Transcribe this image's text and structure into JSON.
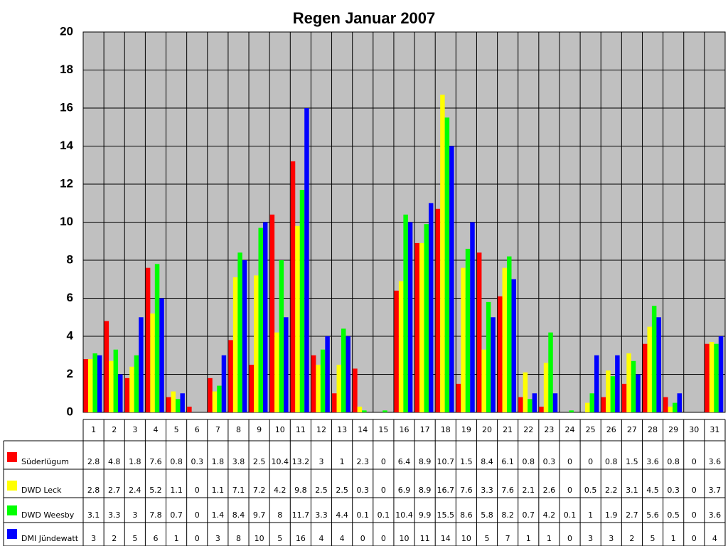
{
  "chart_data": {
    "type": "bar",
    "title": "Regen Januar 2007",
    "categories": [
      "1",
      "2",
      "3",
      "4",
      "5",
      "6",
      "7",
      "8",
      "9",
      "10",
      "11",
      "12",
      "13",
      "14",
      "15",
      "16",
      "17",
      "18",
      "19",
      "20",
      "21",
      "22",
      "23",
      "24",
      "25",
      "26",
      "27",
      "28",
      "29",
      "30",
      "31"
    ],
    "series": [
      {
        "name": "Süderlügum",
        "color": "#ff0000",
        "values": [
          2.8,
          4.8,
          1.8,
          7.6,
          0.8,
          0.3,
          1.8,
          3.8,
          2.5,
          10.4,
          13.2,
          3,
          1,
          2.3,
          0,
          6.4,
          8.9,
          10.7,
          1.5,
          8.4,
          6.1,
          0.8,
          0.3,
          0,
          0,
          0.8,
          1.5,
          3.6,
          0.8,
          0,
          3.6
        ]
      },
      {
        "name": "DWD Leck",
        "color": "#ffff00",
        "values": [
          2.8,
          2.7,
          2.4,
          5.2,
          1.1,
          0,
          1.1,
          7.1,
          7.2,
          4.2,
          9.8,
          2.5,
          2.5,
          0.3,
          0,
          6.9,
          8.9,
          16.7,
          7.6,
          3.3,
          7.6,
          2.1,
          2.6,
          0,
          0.5,
          2.2,
          3.1,
          4.5,
          0.3,
          0,
          3.7
        ]
      },
      {
        "name": "DWD Weesby",
        "color": "#00ff00",
        "values": [
          3.1,
          3.3,
          3,
          7.8,
          0.7,
          0,
          1.4,
          8.4,
          9.7,
          8,
          11.7,
          3.3,
          4.4,
          0.1,
          0.1,
          10.4,
          9.9,
          15.5,
          8.6,
          5.8,
          8.2,
          0.7,
          4.2,
          0.1,
          1,
          1.9,
          2.7,
          5.6,
          0.5,
          0,
          3.6
        ]
      },
      {
        "name": "DMI Jündewatt",
        "color": "#0000ff",
        "values": [
          3,
          2,
          5,
          6,
          1,
          0,
          3,
          8,
          10,
          5,
          16,
          4,
          4,
          0,
          0,
          10,
          11,
          14,
          10,
          5,
          7,
          1,
          1,
          0,
          3,
          3,
          2,
          5,
          1,
          0,
          4
        ]
      }
    ],
    "ylim": [
      0,
      20
    ],
    "yticks": [
      0,
      2,
      4,
      6,
      8,
      10,
      12,
      14,
      16,
      18,
      20
    ],
    "grid": true,
    "background": "#c0c0c0"
  }
}
